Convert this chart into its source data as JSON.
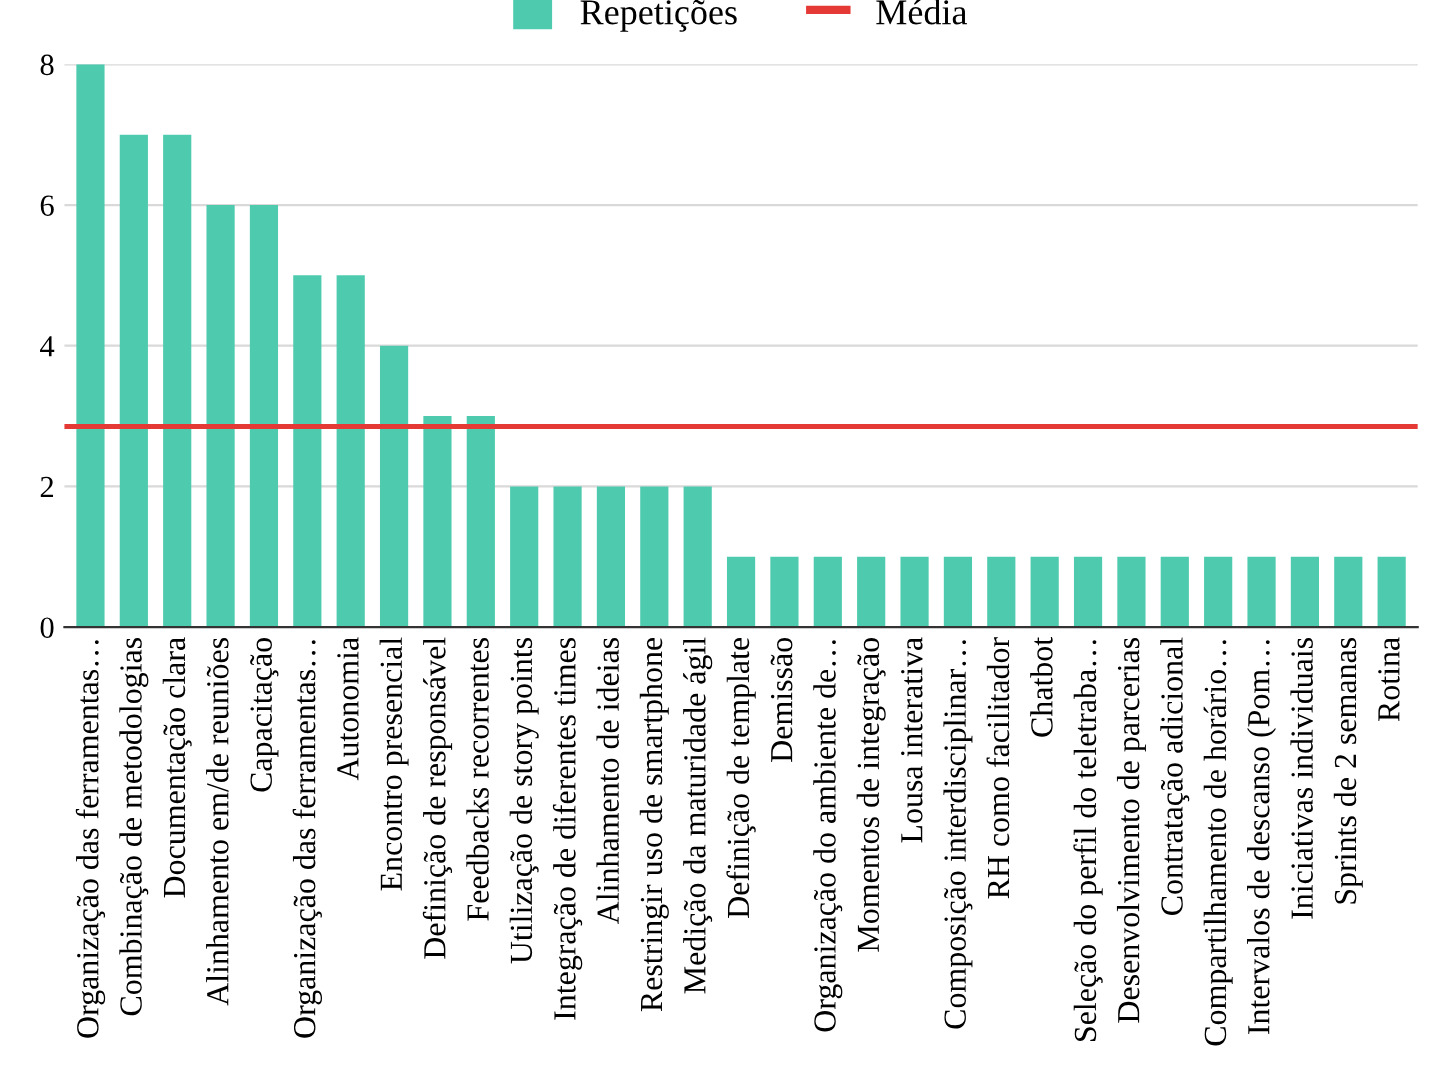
{
  "chart_data": {
    "type": "bar",
    "categories": [
      "Organização das ferramentas…",
      "Combinação de metodologias",
      "Documentação clara",
      "Alinhamento em/de reuniões",
      "Capacitação",
      "Organização das ferramentas…",
      "Autonomia",
      "Encontro presencial",
      "Definição de responsável",
      "Feedbacks recorrentes",
      "Utilização de story points",
      "Integração de diferentes times",
      "Alinhamento de ideias",
      "Restringir uso de smartphone",
      "Medição da maturidade ágil",
      "Definição de template",
      "Demissão",
      "Organização do ambiente de…",
      "Momentos de integração",
      "Lousa interativa",
      "Composição interdisciplinar…",
      "RH como facilitador",
      "Chatbot",
      "Seleção do perfil do teletraba…",
      "Desenvolvimento de parcerias",
      "Contratação adicional",
      "Compartilhamento de horário…",
      "Intervalos de descanso (Pom…",
      "Iniciativas individuais",
      "Sprints de 2 semanas",
      "Rotina"
    ],
    "series": [
      {
        "name": "Repetições",
        "color": "#4ecbaf",
        "values": [
          8,
          7,
          7,
          6,
          6,
          5,
          5,
          4,
          3,
          3,
          2,
          2,
          2,
          2,
          2,
          1,
          1,
          1,
          1,
          1,
          1,
          1,
          1,
          1,
          1,
          1,
          1,
          1,
          1,
          1,
          1
        ]
      }
    ],
    "ref_lines": [
      {
        "axis": "y",
        "value": 2.85,
        "label": "Média",
        "color": "#e53935"
      }
    ],
    "ylim": [
      0,
      8
    ],
    "yticks": [
      0,
      2,
      4,
      6,
      8
    ],
    "grid": "y",
    "legend": "top"
  }
}
